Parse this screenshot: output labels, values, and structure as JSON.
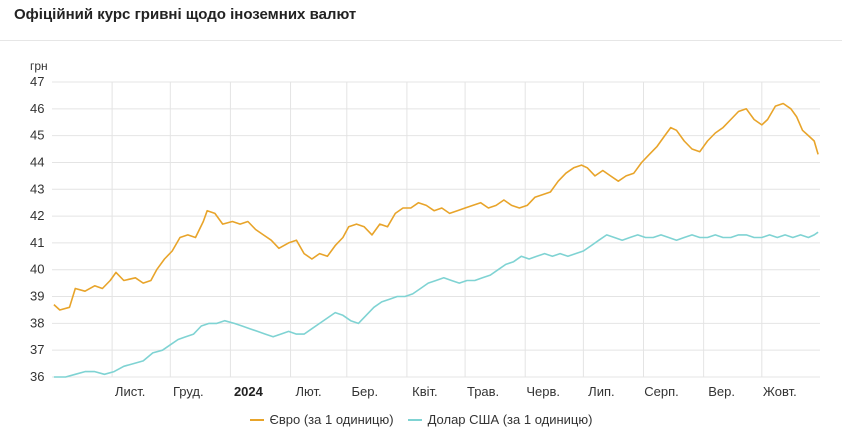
{
  "title": "Офіційний курс гривні щодо іноземних валют",
  "colors": {
    "euro": "#e8a42a",
    "usd": "#7fd3d3",
    "grid": "#e4e4e4"
  },
  "chart_data": {
    "type": "line",
    "ylabel": "грн",
    "ylim": [
      36,
      47
    ],
    "yticks": [
      36,
      37,
      38,
      39,
      40,
      41,
      42,
      43,
      44,
      45,
      46,
      47
    ],
    "x_range": [
      "2023-10-01",
      "2024-10-31"
    ],
    "x_ticks": [
      {
        "label": "Лист.",
        "date": "2023-11-01",
        "bold": false
      },
      {
        "label": "Груд.",
        "date": "2023-12-01",
        "bold": false
      },
      {
        "label": "2024",
        "date": "2024-01-01",
        "bold": true
      },
      {
        "label": "Лют.",
        "date": "2024-02-01",
        "bold": false
      },
      {
        "label": "Бер.",
        "date": "2024-03-01",
        "bold": false
      },
      {
        "label": "Квіт.",
        "date": "2024-04-01",
        "bold": false
      },
      {
        "label": "Трав.",
        "date": "2024-05-01",
        "bold": false
      },
      {
        "label": "Черв.",
        "date": "2024-06-01",
        "bold": false
      },
      {
        "label": "Лип.",
        "date": "2024-07-01",
        "bold": false
      },
      {
        "label": "Серп.",
        "date": "2024-08-01",
        "bold": false
      },
      {
        "label": "Вер.",
        "date": "2024-09-01",
        "bold": false
      },
      {
        "label": "Жовт.",
        "date": "2024-10-01",
        "bold": false
      }
    ],
    "grid": true,
    "legend_position": "bottom",
    "series": [
      {
        "name": "Євро (за 1 одиницю)",
        "color": "#e8a42a",
        "points": [
          [
            "2023-10-02",
            38.7
          ],
          [
            "2023-10-05",
            38.5
          ],
          [
            "2023-10-10",
            38.6
          ],
          [
            "2023-10-13",
            39.3
          ],
          [
            "2023-10-18",
            39.2
          ],
          [
            "2023-10-23",
            39.4
          ],
          [
            "2023-10-27",
            39.3
          ],
          [
            "2023-10-31",
            39.6
          ],
          [
            "2023-11-03",
            39.9
          ],
          [
            "2023-11-07",
            39.6
          ],
          [
            "2023-11-13",
            39.7
          ],
          [
            "2023-11-17",
            39.5
          ],
          [
            "2023-11-21",
            39.6
          ],
          [
            "2023-11-24",
            40.0
          ],
          [
            "2023-11-28",
            40.4
          ],
          [
            "2023-12-02",
            40.7
          ],
          [
            "2023-12-06",
            41.2
          ],
          [
            "2023-12-10",
            41.3
          ],
          [
            "2023-12-14",
            41.2
          ],
          [
            "2023-12-18",
            41.8
          ],
          [
            "2023-12-20",
            42.2
          ],
          [
            "2023-12-24",
            42.1
          ],
          [
            "2023-12-28",
            41.7
          ],
          [
            "2024-01-02",
            41.8
          ],
          [
            "2024-01-06",
            41.7
          ],
          [
            "2024-01-10",
            41.8
          ],
          [
            "2024-01-14",
            41.5
          ],
          [
            "2024-01-18",
            41.3
          ],
          [
            "2024-01-22",
            41.1
          ],
          [
            "2024-01-26",
            40.8
          ],
          [
            "2024-01-31",
            41.0
          ],
          [
            "2024-02-04",
            41.1
          ],
          [
            "2024-02-08",
            40.6
          ],
          [
            "2024-02-12",
            40.4
          ],
          [
            "2024-02-16",
            40.6
          ],
          [
            "2024-02-20",
            40.5
          ],
          [
            "2024-02-24",
            40.9
          ],
          [
            "2024-02-28",
            41.2
          ],
          [
            "2024-03-02",
            41.6
          ],
          [
            "2024-03-06",
            41.7
          ],
          [
            "2024-03-10",
            41.6
          ],
          [
            "2024-03-14",
            41.3
          ],
          [
            "2024-03-18",
            41.7
          ],
          [
            "2024-03-22",
            41.6
          ],
          [
            "2024-03-26",
            42.1
          ],
          [
            "2024-03-30",
            42.3
          ],
          [
            "2024-04-03",
            42.3
          ],
          [
            "2024-04-07",
            42.5
          ],
          [
            "2024-04-11",
            42.4
          ],
          [
            "2024-04-15",
            42.2
          ],
          [
            "2024-04-19",
            42.3
          ],
          [
            "2024-04-23",
            42.1
          ],
          [
            "2024-04-27",
            42.2
          ],
          [
            "2024-05-01",
            42.3
          ],
          [
            "2024-05-05",
            42.4
          ],
          [
            "2024-05-09",
            42.5
          ],
          [
            "2024-05-13",
            42.3
          ],
          [
            "2024-05-17",
            42.4
          ],
          [
            "2024-05-21",
            42.6
          ],
          [
            "2024-05-25",
            42.4
          ],
          [
            "2024-05-29",
            42.3
          ],
          [
            "2024-06-02",
            42.4
          ],
          [
            "2024-06-06",
            42.7
          ],
          [
            "2024-06-10",
            42.8
          ],
          [
            "2024-06-14",
            42.9
          ],
          [
            "2024-06-18",
            43.3
          ],
          [
            "2024-06-22",
            43.6
          ],
          [
            "2024-06-26",
            43.8
          ],
          [
            "2024-06-30",
            43.9
          ],
          [
            "2024-07-03",
            43.8
          ],
          [
            "2024-07-07",
            43.5
          ],
          [
            "2024-07-11",
            43.7
          ],
          [
            "2024-07-15",
            43.5
          ],
          [
            "2024-07-19",
            43.3
          ],
          [
            "2024-07-23",
            43.5
          ],
          [
            "2024-07-27",
            43.6
          ],
          [
            "2024-07-31",
            44.0
          ],
          [
            "2024-08-04",
            44.3
          ],
          [
            "2024-08-08",
            44.6
          ],
          [
            "2024-08-12",
            45.0
          ],
          [
            "2024-08-15",
            45.3
          ],
          [
            "2024-08-18",
            45.2
          ],
          [
            "2024-08-22",
            44.8
          ],
          [
            "2024-08-26",
            44.5
          ],
          [
            "2024-08-30",
            44.4
          ],
          [
            "2024-09-03",
            44.8
          ],
          [
            "2024-09-07",
            45.1
          ],
          [
            "2024-09-11",
            45.3
          ],
          [
            "2024-09-15",
            45.6
          ],
          [
            "2024-09-19",
            45.9
          ],
          [
            "2024-09-23",
            46.0
          ],
          [
            "2024-09-27",
            45.6
          ],
          [
            "2024-10-01",
            45.4
          ],
          [
            "2024-10-04",
            45.6
          ],
          [
            "2024-10-08",
            46.1
          ],
          [
            "2024-10-12",
            46.2
          ],
          [
            "2024-10-16",
            46.0
          ],
          [
            "2024-10-19",
            45.7
          ],
          [
            "2024-10-22",
            45.2
          ],
          [
            "2024-10-25",
            45.0
          ],
          [
            "2024-10-28",
            44.8
          ],
          [
            "2024-10-30",
            44.3
          ]
        ]
      },
      {
        "name": "Долар США (за 1 одиницю)",
        "color": "#7fd3d3",
        "points": [
          [
            "2023-10-02",
            36.0
          ],
          [
            "2023-10-08",
            36.0
          ],
          [
            "2023-10-13",
            36.1
          ],
          [
            "2023-10-18",
            36.2
          ],
          [
            "2023-10-23",
            36.2
          ],
          [
            "2023-10-28",
            36.1
          ],
          [
            "2023-11-02",
            36.2
          ],
          [
            "2023-11-07",
            36.4
          ],
          [
            "2023-11-12",
            36.5
          ],
          [
            "2023-11-17",
            36.6
          ],
          [
            "2023-11-22",
            36.9
          ],
          [
            "2023-11-27",
            37.0
          ],
          [
            "2023-12-01",
            37.2
          ],
          [
            "2023-12-05",
            37.4
          ],
          [
            "2023-12-09",
            37.5
          ],
          [
            "2023-12-13",
            37.6
          ],
          [
            "2023-12-17",
            37.9
          ],
          [
            "2023-12-21",
            38.0
          ],
          [
            "2023-12-25",
            38.0
          ],
          [
            "2023-12-29",
            38.1
          ],
          [
            "2024-01-03",
            38.0
          ],
          [
            "2024-01-07",
            37.9
          ],
          [
            "2024-01-11",
            37.8
          ],
          [
            "2024-01-15",
            37.7
          ],
          [
            "2024-01-19",
            37.6
          ],
          [
            "2024-01-23",
            37.5
          ],
          [
            "2024-01-27",
            37.6
          ],
          [
            "2024-01-31",
            37.7
          ],
          [
            "2024-02-04",
            37.6
          ],
          [
            "2024-02-08",
            37.6
          ],
          [
            "2024-02-12",
            37.8
          ],
          [
            "2024-02-16",
            38.0
          ],
          [
            "2024-02-20",
            38.2
          ],
          [
            "2024-02-24",
            38.4
          ],
          [
            "2024-02-28",
            38.3
          ],
          [
            "2024-03-03",
            38.1
          ],
          [
            "2024-03-07",
            38.0
          ],
          [
            "2024-03-11",
            38.3
          ],
          [
            "2024-03-15",
            38.6
          ],
          [
            "2024-03-19",
            38.8
          ],
          [
            "2024-03-23",
            38.9
          ],
          [
            "2024-03-27",
            39.0
          ],
          [
            "2024-03-31",
            39.0
          ],
          [
            "2024-04-04",
            39.1
          ],
          [
            "2024-04-08",
            39.3
          ],
          [
            "2024-04-12",
            39.5
          ],
          [
            "2024-04-16",
            39.6
          ],
          [
            "2024-04-20",
            39.7
          ],
          [
            "2024-04-24",
            39.6
          ],
          [
            "2024-04-28",
            39.5
          ],
          [
            "2024-05-02",
            39.6
          ],
          [
            "2024-05-06",
            39.6
          ],
          [
            "2024-05-10",
            39.7
          ],
          [
            "2024-05-14",
            39.8
          ],
          [
            "2024-05-18",
            40.0
          ],
          [
            "2024-05-22",
            40.2
          ],
          [
            "2024-05-26",
            40.3
          ],
          [
            "2024-05-30",
            40.5
          ],
          [
            "2024-06-03",
            40.4
          ],
          [
            "2024-06-07",
            40.5
          ],
          [
            "2024-06-11",
            40.6
          ],
          [
            "2024-06-15",
            40.5
          ],
          [
            "2024-06-19",
            40.6
          ],
          [
            "2024-06-23",
            40.5
          ],
          [
            "2024-06-27",
            40.6
          ],
          [
            "2024-07-01",
            40.7
          ],
          [
            "2024-07-05",
            40.9
          ],
          [
            "2024-07-09",
            41.1
          ],
          [
            "2024-07-13",
            41.3
          ],
          [
            "2024-07-17",
            41.2
          ],
          [
            "2024-07-21",
            41.1
          ],
          [
            "2024-07-25",
            41.2
          ],
          [
            "2024-07-29",
            41.3
          ],
          [
            "2024-08-02",
            41.2
          ],
          [
            "2024-08-06",
            41.2
          ],
          [
            "2024-08-10",
            41.3
          ],
          [
            "2024-08-14",
            41.2
          ],
          [
            "2024-08-18",
            41.1
          ],
          [
            "2024-08-22",
            41.2
          ],
          [
            "2024-08-26",
            41.3
          ],
          [
            "2024-08-30",
            41.2
          ],
          [
            "2024-09-03",
            41.2
          ],
          [
            "2024-09-07",
            41.3
          ],
          [
            "2024-09-11",
            41.2
          ],
          [
            "2024-09-15",
            41.2
          ],
          [
            "2024-09-19",
            41.3
          ],
          [
            "2024-09-23",
            41.3
          ],
          [
            "2024-09-27",
            41.2
          ],
          [
            "2024-10-01",
            41.2
          ],
          [
            "2024-10-05",
            41.3
          ],
          [
            "2024-10-09",
            41.2
          ],
          [
            "2024-10-13",
            41.3
          ],
          [
            "2024-10-17",
            41.2
          ],
          [
            "2024-10-21",
            41.3
          ],
          [
            "2024-10-25",
            41.2
          ],
          [
            "2024-10-28",
            41.3
          ],
          [
            "2024-10-30",
            41.4
          ]
        ]
      }
    ]
  },
  "legend": [
    {
      "label": "Євро (за 1 одиницю)",
      "color": "#e8a42a"
    },
    {
      "label": "Долар США (за 1 одиницю)",
      "color": "#7fd3d3"
    }
  ]
}
